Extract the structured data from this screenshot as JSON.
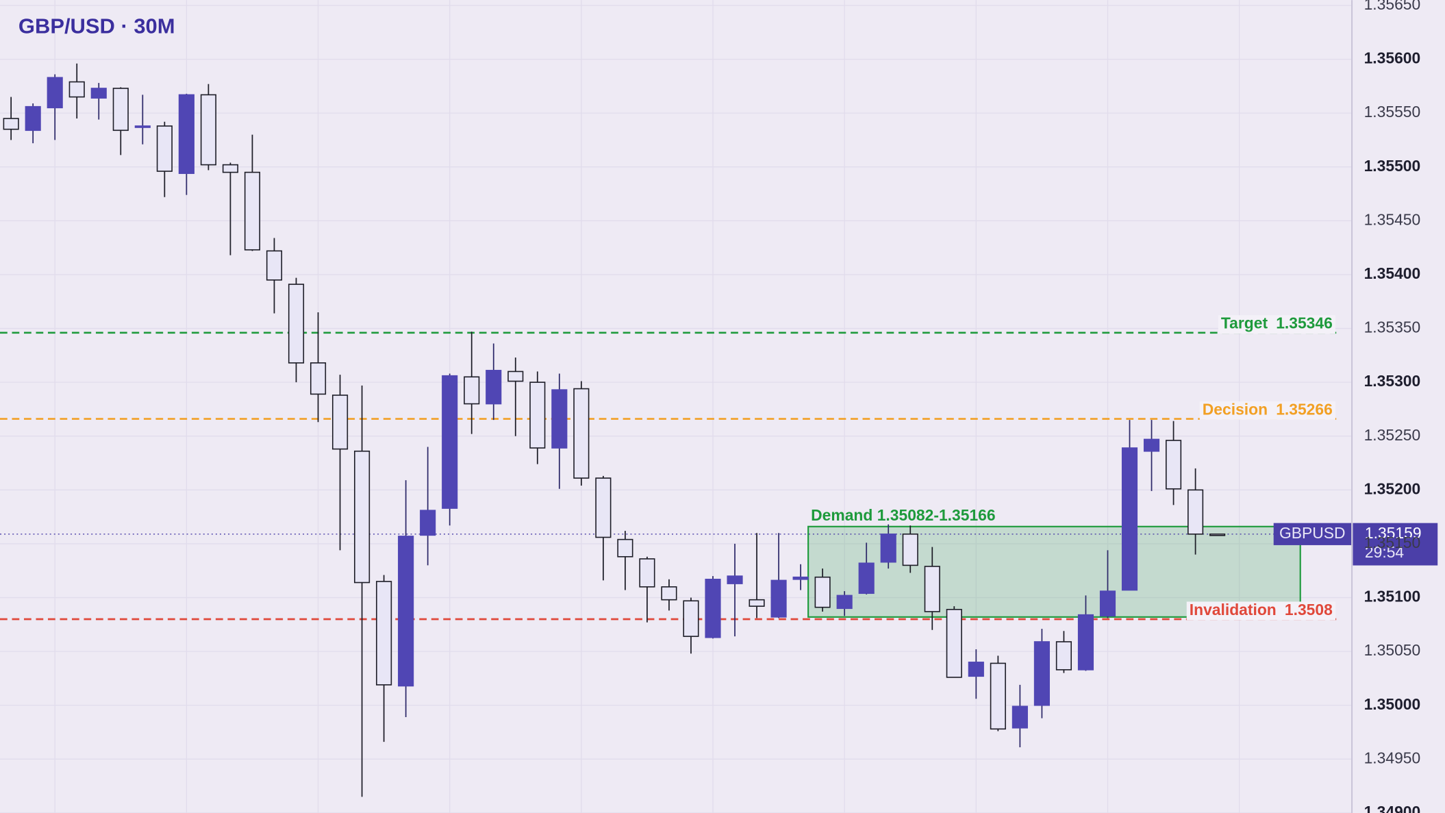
{
  "chart_data": {
    "type": "candlestick",
    "title": "GBP/USD · 30M",
    "ylim": [
      1.349,
      1.35655
    ],
    "yticks": [
      {
        "value": 1.3565,
        "label": "1.35650"
      },
      {
        "value": 1.356,
        "label": "1.35600"
      },
      {
        "value": 1.3555,
        "label": "1.35550"
      },
      {
        "value": 1.355,
        "label": "1.35500"
      },
      {
        "value": 1.3545,
        "label": "1.35450"
      },
      {
        "value": 1.354,
        "label": "1.35400"
      },
      {
        "value": 1.3535,
        "label": "1.35350"
      },
      {
        "value": 1.353,
        "label": "1.35300"
      },
      {
        "value": 1.3525,
        "label": "1.35250"
      },
      {
        "value": 1.352,
        "label": "1.35200"
      },
      {
        "value": 1.3515,
        "label": "1.35150"
      },
      {
        "value": 1.351,
        "label": "1.35100"
      },
      {
        "value": 1.3505,
        "label": "1.35050"
      },
      {
        "value": 1.35,
        "label": "1.35000"
      },
      {
        "value": 1.3495,
        "label": "1.34950"
      },
      {
        "value": 1.349,
        "label": "1.34900"
      }
    ],
    "grid": true,
    "up_color": "#5046b4",
    "down_color": "#e8e6f6",
    "series": [
      {
        "name": "GBPUSD",
        "open": [
          1.35545,
          1.35534,
          1.35555,
          1.35579,
          1.35564,
          1.35573,
          1.35537,
          1.35538,
          1.35494,
          1.35567,
          1.35502,
          1.35495,
          1.35422,
          1.35391,
          1.35318,
          1.35288,
          1.35236,
          1.35115,
          1.35018,
          1.35158,
          1.35183,
          1.35305,
          1.3528,
          1.3531,
          1.353,
          1.35239,
          1.35294,
          1.35211,
          1.35154,
          1.35136,
          1.3511,
          1.35097,
          1.35063,
          1.35113,
          1.35098,
          1.35082,
          1.35117,
          1.35119,
          1.3509,
          1.35104,
          1.35133,
          1.35159,
          1.35129,
          1.35089,
          1.35027,
          1.35039,
          1.34979,
          1.35,
          1.35059,
          1.35033,
          1.35083,
          1.35107,
          1.35236,
          1.35246,
          1.352,
          1.35159
        ],
        "high": [
          1.35565,
          1.35559,
          1.35586,
          1.35596,
          1.35578,
          1.35574,
          1.35567,
          1.35542,
          1.35568,
          1.35577,
          1.35504,
          1.3553,
          1.35434,
          1.35397,
          1.35365,
          1.35307,
          1.35297,
          1.35121,
          1.35209,
          1.3524,
          1.35308,
          1.35347,
          1.35336,
          1.35323,
          1.3531,
          1.35308,
          1.35301,
          1.35213,
          1.35162,
          1.35138,
          1.35117,
          1.351,
          1.3512,
          1.3515,
          1.3516,
          1.3516,
          1.35131,
          1.35127,
          1.35106,
          1.35151,
          1.35168,
          1.35167,
          1.35147,
          1.35092,
          1.35052,
          1.35046,
          1.35019,
          1.35071,
          1.35069,
          1.35102,
          1.35144,
          1.35265,
          1.35265,
          1.35264,
          1.3522,
          1.35159
        ],
        "low": [
          1.35525,
          1.35522,
          1.35525,
          1.35545,
          1.35544,
          1.35511,
          1.35521,
          1.35472,
          1.35474,
          1.35497,
          1.35418,
          1.35422,
          1.35364,
          1.353,
          1.35263,
          1.35144,
          1.34915,
          1.34966,
          1.34989,
          1.3513,
          1.35167,
          1.35252,
          1.35265,
          1.3525,
          1.35224,
          1.35201,
          1.35204,
          1.35116,
          1.35107,
          1.35077,
          1.35088,
          1.35048,
          1.35062,
          1.35064,
          1.35081,
          1.35081,
          1.35107,
          1.35087,
          1.35083,
          1.35103,
          1.35127,
          1.35123,
          1.3507,
          1.35026,
          1.35006,
          1.34976,
          1.34961,
          1.34988,
          1.3503,
          1.35032,
          1.35081,
          1.35107,
          1.35199,
          1.35186,
          1.3514,
          1.35159
        ],
        "close": [
          1.35535,
          1.35556,
          1.35583,
          1.35565,
          1.35573,
          1.35534,
          1.35538,
          1.35496,
          1.35567,
          1.35502,
          1.35495,
          1.35423,
          1.35395,
          1.35318,
          1.35289,
          1.35238,
          1.35114,
          1.35019,
          1.35157,
          1.35181,
          1.35306,
          1.3528,
          1.35311,
          1.35301,
          1.35239,
          1.35293,
          1.35211,
          1.35156,
          1.35138,
          1.3511,
          1.35098,
          1.35064,
          1.35117,
          1.3512,
          1.35092,
          1.35116,
          1.35119,
          1.35091,
          1.35102,
          1.35132,
          1.35159,
          1.3513,
          1.35087,
          1.35026,
          1.3504,
          1.34978,
          1.34999,
          1.35059,
          1.35033,
          1.35084,
          1.35106,
          1.35239,
          1.35247,
          1.35201,
          1.35159,
          1.35159
        ]
      }
    ],
    "levels": [
      {
        "name": "Target",
        "value": 1.35346,
        "color": "#1e9a3c"
      },
      {
        "name": "Decision",
        "value": 1.35266,
        "color": "#f2a024"
      },
      {
        "name": "Invalidation",
        "value": 1.3508,
        "color": "#e0483a"
      }
    ],
    "zone": {
      "label": "Demand 1.35082-1.35166",
      "low": 1.35082,
      "high": 1.35166,
      "color": "#1e9a3c"
    },
    "last_price": {
      "symbol": "GBPUSD",
      "value": 1.35159,
      "countdown": "29:54",
      "color": "#4b3fa8"
    }
  }
}
